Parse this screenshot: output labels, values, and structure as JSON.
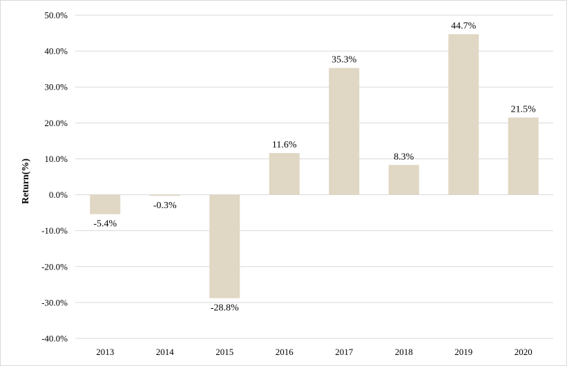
{
  "chart_data": {
    "type": "bar",
    "categories": [
      "2013",
      "2014",
      "2015",
      "2016",
      "2017",
      "2018",
      "2019",
      "2020"
    ],
    "values": [
      -5.4,
      -0.3,
      -28.8,
      11.6,
      35.3,
      8.3,
      44.7,
      21.5
    ],
    "data_labels": [
      "-5.4%",
      "-0.3%",
      "-28.8%",
      "11.6%",
      "35.3%",
      "8.3%",
      "44.7%",
      "21.5%"
    ],
    "title": "",
    "xlabel": "",
    "ylabel": "Return(%)",
    "ylim": [
      -40,
      50
    ],
    "yticks": [
      50,
      40,
      30,
      20,
      10,
      0,
      -10,
      -20,
      -30,
      -40
    ],
    "ytick_labels": [
      "50.0%",
      "40.0%",
      "30.0%",
      "20.0%",
      "10.0%",
      "0.0%",
      "-10.0%",
      "-20.0%",
      "-30.0%",
      "-40.0%"
    ],
    "grid": true,
    "legend": "none",
    "bar_color": "#e0d7c4",
    "grid_color": "#d9d9d9"
  }
}
